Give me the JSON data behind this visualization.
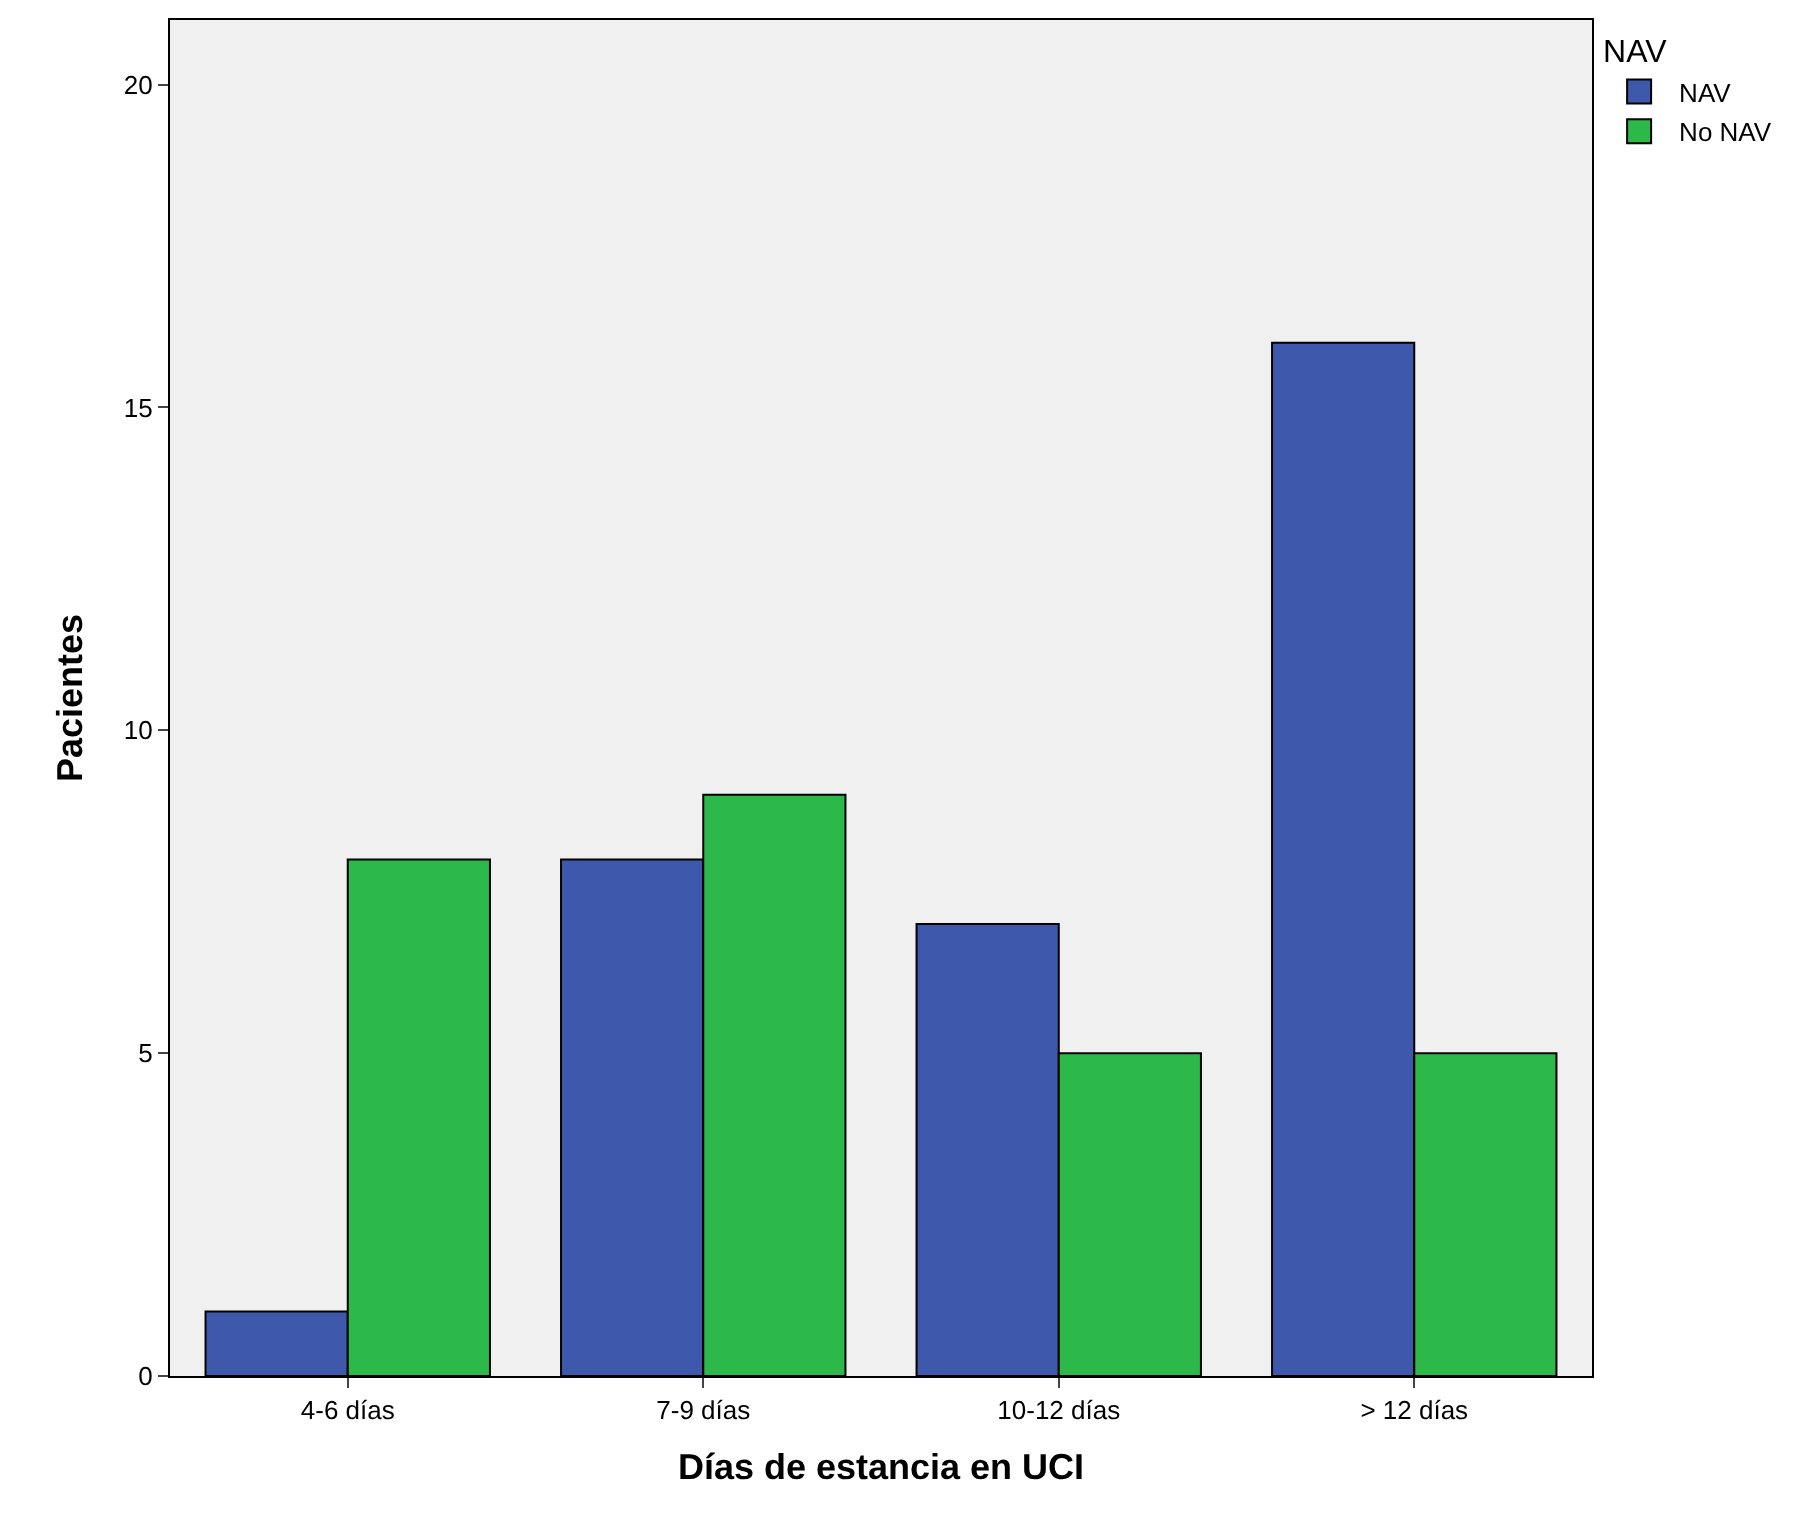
{
  "chart_data": {
    "type": "bar",
    "xlabel": "Días de estancia en UCI",
    "ylabel": "Pacientes",
    "legend_title": "NAV",
    "categories": [
      "4-6 días",
      "7-9 días",
      "10-12 días",
      "> 12 días"
    ],
    "series": [
      {
        "name": "NAV",
        "color": "#3e58ac",
        "values": [
          1,
          8,
          7,
          16
        ]
      },
      {
        "name": "No NAV",
        "color": "#2db84a",
        "values": [
          8,
          9,
          5,
          5
        ]
      }
    ],
    "ylim": [
      0,
      21
    ],
    "yticks": [
      0,
      5,
      10,
      15,
      20
    ],
    "grid": false,
    "legend": "top right"
  }
}
